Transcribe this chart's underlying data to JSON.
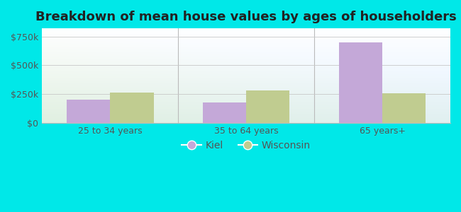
{
  "title": "Breakdown of mean house values by ages of householders",
  "categories": [
    "25 to 34 years",
    "35 to 64 years",
    "65 years+"
  ],
  "kiel_values": [
    200000,
    180000,
    700000
  ],
  "wisconsin_values": [
    265000,
    280000,
    255000
  ],
  "bar_color_kiel": "#c4a8d8",
  "bar_color_wisconsin": "#c0cc90",
  "yticks": [
    0,
    250000,
    500000,
    750000
  ],
  "ylim": [
    0,
    820000
  ],
  "legend_labels": [
    "Kiel",
    "Wisconsin"
  ],
  "fig_bgcolor": "#00e8e8",
  "plot_bg_colors": [
    "#e8f5e8",
    "#f5faf5",
    "#ffffff"
  ],
  "title_fontsize": 13,
  "tick_fontsize": 9,
  "legend_fontsize": 10,
  "bar_width": 0.32,
  "tick_color": "#555555",
  "grid_color": "#c8c8c8",
  "spine_color": "#bbbbbb"
}
